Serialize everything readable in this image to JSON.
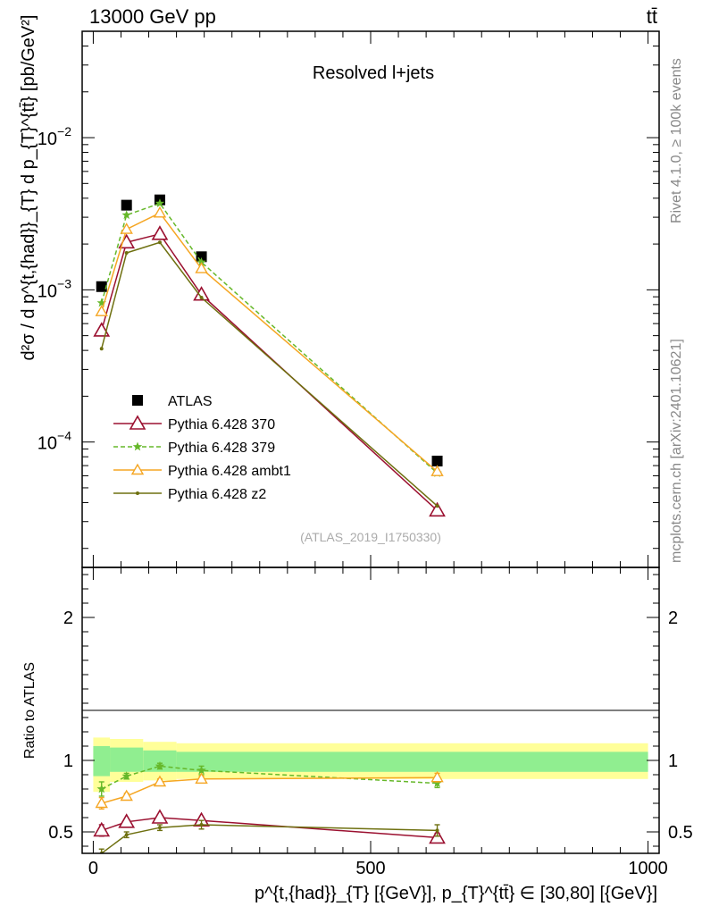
{
  "header": {
    "left": "13000 GeV pp",
    "right": "tt̄"
  },
  "side_labels": {
    "rivet": "Rivet 4.1.0, ≥ 100k events",
    "mcplots": "mcplots.cern.ch [arXiv:2401.10621]"
  },
  "colors": {
    "atlas": "#000000",
    "p370": "#9b1030",
    "p379": "#66b82a",
    "ambt1": "#f5a623",
    "z2": "#6e7010",
    "band_inner": "#90ee90",
    "band_outer": "#ffff99"
  },
  "chart_data": [
    {
      "type": "line",
      "title": "Resolved l+jets",
      "ylabel": "d²σ / d p^{t,{had}}_{T} d p_{T}^{tt̄} [pb/GeV²]",
      "yscale": "log",
      "xlim": [
        -20,
        1020
      ],
      "ylim": [
        1.5e-05,
        0.05
      ],
      "y_ticks": [
        {
          "value": 0.0001,
          "label": "10",
          "exp": "−4"
        },
        {
          "value": 0.001,
          "label": "10",
          "exp": "−3"
        },
        {
          "value": 0.01,
          "label": "10",
          "exp": "−2"
        }
      ],
      "watermark": "(ATLAS_2019_I1750330)",
      "series": [
        {
          "name": "ATLAS",
          "key": "atlas",
          "marker": "square",
          "x": [
            15,
            60,
            120,
            195,
            620
          ],
          "y": [
            0.00105,
            0.0036,
            0.0039,
            0.00165,
            7.5e-05
          ]
        },
        {
          "name": "Pythia 6.428 370",
          "key": "p370",
          "marker": "triangle-open",
          "x": [
            15,
            60,
            120,
            195,
            620
          ],
          "y": [
            0.00054,
            0.00205,
            0.00233,
            0.00093,
            3.55e-05
          ]
        },
        {
          "name": "Pythia 6.428 379",
          "key": "p379",
          "marker": "star",
          "dashed": true,
          "x": [
            15,
            60,
            120,
            195,
            620
          ],
          "y": [
            0.00082,
            0.0031,
            0.0037,
            0.00152,
            6.25e-05
          ]
        },
        {
          "name": "Pythia 6.428 ambt1",
          "key": "ambt1",
          "marker": "triangle-open-small",
          "x": [
            15,
            60,
            120,
            195,
            620
          ],
          "y": [
            0.00072,
            0.0025,
            0.0032,
            0.00138,
            6.4e-05
          ]
        },
        {
          "name": "Pythia 6.428 z2",
          "key": "z2",
          "marker": "dot",
          "x": [
            15,
            60,
            120,
            195,
            620
          ],
          "y": [
            0.00041,
            0.00175,
            0.00205,
            0.00089,
            3.8e-05
          ]
        }
      ]
    },
    {
      "type": "line",
      "ylabel": "Ratio to ATLAS",
      "xlabel": "p^{t,{had}}_{T} [{GeV}], p_{T}^{tt̄} ∈ [30,80] [{GeV}]",
      "xlim": [
        -20,
        1020
      ],
      "ylim": [
        0.35,
        2.35
      ],
      "x_ticks": [
        0,
        500,
        1000
      ],
      "y_ticks": [
        0.5,
        1,
        2
      ],
      "bands": {
        "edges": [
          0,
          30,
          90,
          150,
          1000
        ],
        "inner_lo": [
          0.89,
          0.92,
          0.92,
          0.92
        ],
        "inner_hi": [
          1.1,
          1.09,
          1.07,
          1.06
        ],
        "outer_lo": [
          0.78,
          0.85,
          0.86,
          0.87
        ],
        "outer_hi": [
          1.16,
          1.15,
          1.13,
          1.12
        ]
      },
      "series": [
        {
          "name": "Pythia 6.428 370",
          "key": "p370",
          "marker": "triangle-open",
          "x": [
            15,
            60,
            120,
            195,
            620
          ],
          "y": [
            0.51,
            0.57,
            0.6,
            0.58,
            0.46
          ],
          "err": [
            0.04,
            0.02,
            0.02,
            0.02,
            0.03
          ]
        },
        {
          "name": "Pythia 6.428 379",
          "key": "p379",
          "marker": "star",
          "dashed": true,
          "x": [
            15,
            60,
            120,
            195,
            620
          ],
          "y": [
            0.8,
            0.89,
            0.96,
            0.93,
            0.84
          ],
          "err": [
            0.05,
            0.02,
            0.02,
            0.03,
            0.03
          ]
        },
        {
          "name": "Pythia 6.428 ambt1",
          "key": "ambt1",
          "marker": "triangle-open-small",
          "x": [
            15,
            60,
            120,
            195,
            620
          ],
          "y": [
            0.7,
            0.75,
            0.85,
            0.87,
            0.88
          ],
          "err": [
            0.04,
            0.02,
            0.02,
            0.02,
            0.03
          ]
        },
        {
          "name": "Pythia 6.428 z2",
          "key": "z2",
          "marker": "dot",
          "x": [
            15,
            60,
            120,
            195,
            620
          ],
          "y": [
            0.35,
            0.48,
            0.53,
            0.55,
            0.51
          ],
          "err": [
            0.03,
            0.02,
            0.02,
            0.03,
            0.04
          ]
        }
      ]
    }
  ]
}
